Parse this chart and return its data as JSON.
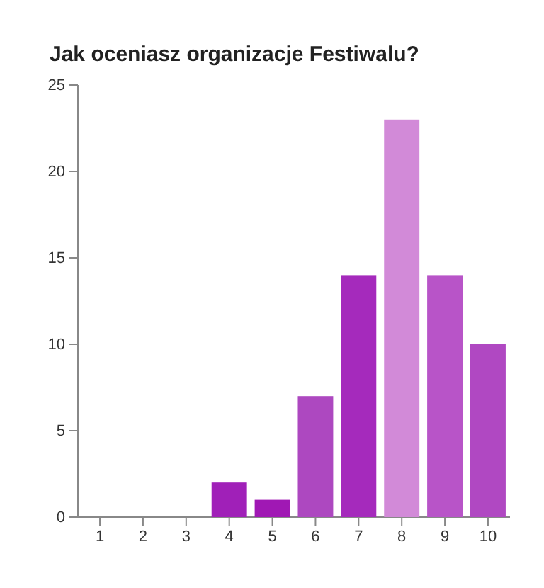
{
  "chart_data": {
    "type": "bar",
    "title": "Jak oceniasz organizacje Festiwalu?",
    "categories": [
      "1",
      "2",
      "3",
      "4",
      "5",
      "6",
      "7",
      "8",
      "9",
      "10"
    ],
    "values": [
      0,
      0,
      0,
      2,
      1,
      7,
      14,
      23,
      14,
      10
    ],
    "colors": [
      "#a020b8",
      "#a020b8",
      "#a020b8",
      "#a020b8",
      "#a018b4",
      "#ad48c0",
      "#a52abc",
      "#d28ad8",
      "#b854c8",
      "#b048c2"
    ],
    "ylim": [
      0,
      25
    ],
    "yticks": [
      0,
      5,
      10,
      15,
      20,
      25
    ],
    "grid": false
  }
}
